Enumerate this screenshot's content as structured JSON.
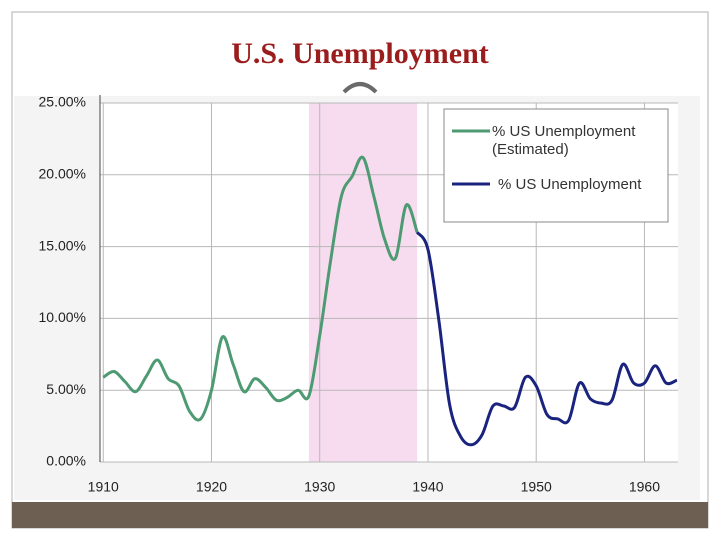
{
  "chart_data": {
    "type": "line",
    "title": "U.S. Unemployment",
    "xlim": [
      1909.7,
      1963.1
    ],
    "xticks": [
      1910,
      1920,
      1930,
      1940,
      1950,
      1960
    ],
    "ylim": [
      0,
      25
    ],
    "yticks": [
      {
        "value": 0,
        "label": "0.00%"
      },
      {
        "value": 5,
        "label": "5.00%"
      },
      {
        "value": 10,
        "label": "10.00%"
      },
      {
        "value": 15,
        "label": "15.00%"
      },
      {
        "value": 20,
        "label": "20.00%"
      },
      {
        "value": 25,
        "label": "25.00%"
      }
    ],
    "grid": true,
    "shaded_range": [
      1929,
      1939
    ],
    "shaded_color": "#f7dcef",
    "legend": "upper right",
    "series": [
      {
        "name": "% US Unemployment (Estimated)",
        "color": "#4e9a73",
        "x": [
          1910,
          1911,
          1912,
          1913,
          1914,
          1915,
          1916,
          1917,
          1918,
          1919,
          1920,
          1921,
          1922,
          1923,
          1924,
          1925,
          1926,
          1927,
          1928,
          1929,
          1930,
          1931,
          1932,
          1933,
          1934,
          1935,
          1936,
          1937,
          1938,
          1939
        ],
        "values": [
          5.9,
          6.3,
          5.6,
          4.9,
          6.0,
          7.1,
          5.8,
          5.3,
          3.5,
          3.0,
          5.0,
          8.7,
          6.8,
          4.9,
          5.8,
          5.2,
          4.3,
          4.5,
          5.0,
          4.6,
          8.8,
          14.0,
          18.5,
          19.9,
          21.2,
          18.5,
          15.5,
          14.2,
          17.9,
          16.0
        ]
      },
      {
        "name": "% US Unemployment",
        "color": "#1a237e",
        "x": [
          1939,
          1940,
          1941,
          1942,
          1943,
          1944,
          1945,
          1946,
          1947,
          1948,
          1949,
          1950,
          1951,
          1952,
          1953,
          1954,
          1955,
          1956,
          1957,
          1958,
          1959,
          1960,
          1961,
          1962,
          1963
        ],
        "values": [
          16.0,
          14.8,
          9.9,
          4.0,
          1.8,
          1.2,
          1.9,
          3.9,
          3.9,
          3.8,
          5.9,
          5.3,
          3.3,
          3.0,
          2.9,
          5.5,
          4.4,
          4.1,
          4.3,
          6.8,
          5.5,
          5.5,
          6.7,
          5.5,
          5.7
        ]
      }
    ]
  }
}
